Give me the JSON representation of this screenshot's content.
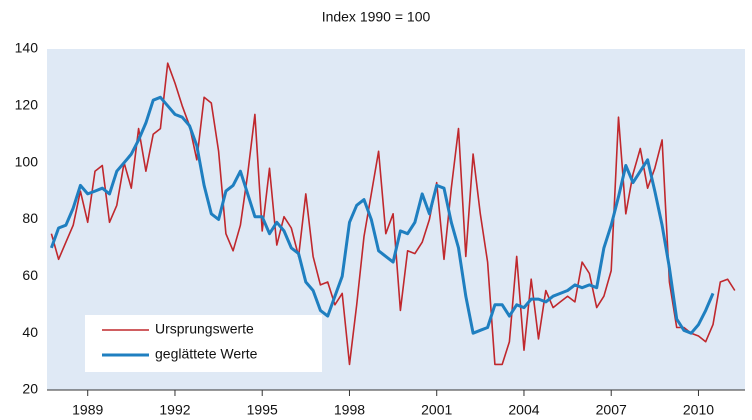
{
  "chart_data": {
    "type": "line",
    "title": "Index 1990 = 100",
    "x": [
      1987.75,
      1988,
      1988.25,
      1988.5,
      1988.75,
      1989,
      1989.25,
      1989.5,
      1989.75,
      1990,
      1990.25,
      1990.5,
      1990.75,
      1991,
      1991.25,
      1991.5,
      1991.75,
      1992,
      1992.25,
      1992.5,
      1992.75,
      1993,
      1993.25,
      1993.5,
      1993.75,
      1994,
      1994.25,
      1994.5,
      1994.75,
      1995,
      1995.25,
      1995.5,
      1995.75,
      1996,
      1996.25,
      1996.5,
      1996.75,
      1997,
      1997.25,
      1997.5,
      1997.75,
      1998,
      1998.25,
      1998.5,
      1998.75,
      1999,
      1999.25,
      1999.5,
      1999.75,
      2000,
      2000.25,
      2000.5,
      2000.75,
      2001,
      2001.25,
      2001.5,
      2001.75,
      2002,
      2002.25,
      2002.5,
      2002.75,
      2003,
      2003.25,
      2003.5,
      2003.75,
      2004,
      2004.25,
      2004.5,
      2004.75,
      2005,
      2005.25,
      2005.5,
      2005.75,
      2006,
      2006.25,
      2006.5,
      2006.75,
      2007,
      2007.25,
      2007.5,
      2007.75,
      2008,
      2008.25,
      2008.5,
      2008.75,
      2009,
      2009.25,
      2009.5,
      2009.75,
      2010,
      2010.25,
      2010.5,
      2010.75,
      2011,
      2011.25
    ],
    "series": [
      {
        "name": "Ursprungswerte",
        "color": "#c0282d",
        "width": 1.6,
        "values": [
          75,
          66,
          72,
          78,
          90,
          79,
          97,
          99,
          79,
          85,
          100,
          91,
          112,
          97,
          110,
          112,
          135,
          128,
          120,
          113,
          101,
          123,
          121,
          104,
          75,
          69,
          78,
          96,
          117,
          76,
          98,
          71,
          81,
          77,
          67,
          89,
          67,
          57,
          58,
          50,
          54,
          29,
          50,
          74,
          89,
          104,
          75,
          82,
          48,
          69,
          68,
          72,
          80,
          93,
          66,
          91,
          112,
          67,
          103,
          82,
          65,
          29,
          29,
          37,
          67,
          34,
          59,
          38,
          55,
          49,
          51,
          53,
          51,
          65,
          61,
          49,
          53,
          62,
          116,
          82,
          96,
          105,
          91,
          98,
          108,
          58,
          42,
          42,
          40,
          39,
          37,
          43,
          58,
          59,
          55
        ]
      },
      {
        "name": "geglättete Werte",
        "color": "#1f7fc0",
        "width": 3,
        "values": [
          70,
          77,
          78,
          84,
          92,
          89,
          90,
          91,
          89,
          97,
          100,
          103,
          108,
          114,
          122,
          123,
          120,
          117,
          116,
          113,
          106,
          92,
          82,
          80,
          90,
          92,
          97,
          89,
          81,
          81,
          75,
          79,
          76,
          70,
          68,
          58,
          55,
          48,
          46,
          53,
          60,
          79,
          85,
          87,
          80,
          69,
          67,
          65,
          76,
          75,
          79,
          89,
          82,
          92,
          91,
          79,
          70,
          53,
          40,
          41,
          42,
          50,
          50,
          46,
          50,
          49,
          52,
          52,
          51,
          53,
          54,
          55,
          57,
          56,
          57,
          56,
          70,
          78,
          88,
          99,
          93,
          97,
          101,
          90,
          78,
          63,
          45,
          41,
          40,
          43,
          48,
          54,
          null,
          null,
          null
        ]
      }
    ],
    "xlim": [
      1987.6,
      2011.6
    ],
    "xticks": [
      1989,
      1992,
      1995,
      1998,
      2001,
      2004,
      2007,
      2010
    ],
    "ylim": [
      20,
      140
    ],
    "yticks": [
      20,
      40,
      60,
      80,
      100,
      120,
      140
    ],
    "legend": "lower left",
    "background": "#dfe9f5"
  }
}
